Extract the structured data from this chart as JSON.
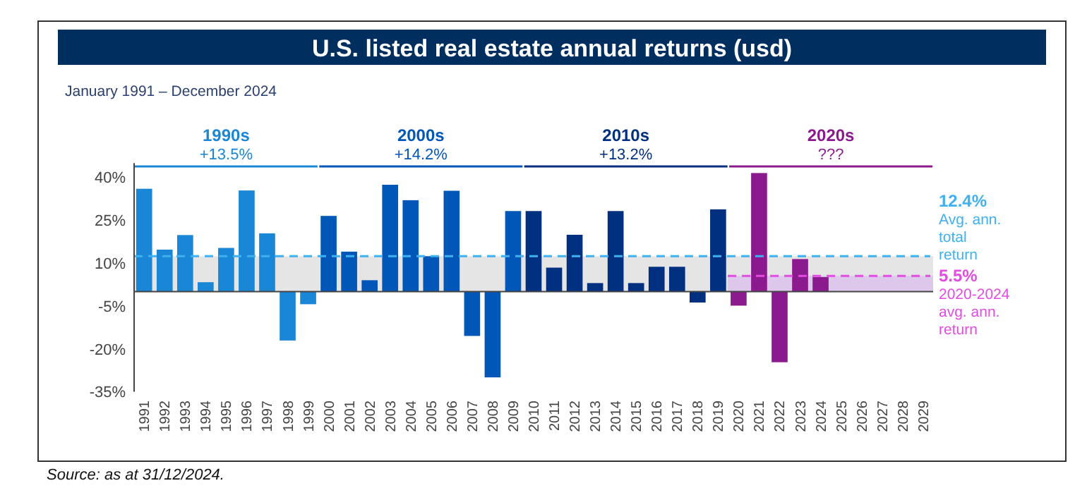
{
  "chart_data": {
    "type": "bar",
    "title": "U.S. listed real estate annual returns (usd)",
    "subtitle": "January 1991 – December 2024",
    "categories": [
      "1991",
      "1992",
      "1993",
      "1994",
      "1995",
      "1996",
      "1997",
      "1998",
      "1999",
      "2000",
      "2001",
      "2002",
      "2003",
      "2004",
      "2005",
      "2006",
      "2007",
      "2008",
      "2009",
      "2010",
      "2011",
      "2012",
      "2013",
      "2014",
      "2015",
      "2016",
      "2017",
      "2018",
      "2019",
      "2020",
      "2021",
      "2022",
      "2023",
      "2024",
      "2025",
      "2026",
      "2027",
      "2028",
      "2029"
    ],
    "values": [
      36,
      14.7,
      19.8,
      3.3,
      15.3,
      35.4,
      20.4,
      -17.1,
      -4.4,
      26.5,
      14,
      4,
      37.4,
      32,
      12.4,
      35.3,
      -15.5,
      -30,
      28.2,
      28.2,
      8.4,
      19.9,
      3,
      28.2,
      3,
      8.7,
      8.7,
      -3.8,
      28.8,
      -4.9,
      41.5,
      -24.7,
      11.4,
      5.1,
      null,
      null,
      null,
      null,
      null
    ],
    "colors": [
      "#1a86d6",
      "#1a86d6",
      "#1a86d6",
      "#1a86d6",
      "#1a86d6",
      "#1a86d6",
      "#1a86d6",
      "#1a86d6",
      "#1a86d6",
      "#0057b8",
      "#0057b8",
      "#0057b8",
      "#0057b8",
      "#0057b8",
      "#0057b8",
      "#0057b8",
      "#0057b8",
      "#0057b8",
      "#0057b8",
      "#00307f",
      "#00307f",
      "#00307f",
      "#00307f",
      "#00307f",
      "#00307f",
      "#00307f",
      "#00307f",
      "#00307f",
      "#00307f",
      "#8b1a8f",
      "#8b1a8f",
      "#8b1a8f",
      "#8b1a8f",
      "#8b1a8f",
      "#8b1a8f",
      "#8b1a8f",
      "#8b1a8f",
      "#8b1a8f",
      "#8b1a8f"
    ],
    "ylim": [
      -35,
      45
    ],
    "yticks": [
      {
        "value": 40,
        "label": "40%"
      },
      {
        "value": 25,
        "label": "25%"
      },
      {
        "value": 10,
        "label": "10%"
      },
      {
        "value": -5,
        "label": "-5%"
      },
      {
        "value": -20,
        "label": "-20%"
      },
      {
        "value": -35,
        "label": "-35%"
      }
    ],
    "bands": [
      {
        "axis": "y",
        "from": 0,
        "to": 12.4,
        "color": "#e2e2e2"
      },
      {
        "axis": "y",
        "from": 0,
        "to": 5.5,
        "color": "#dcc3ea"
      }
    ],
    "ref_lines": [
      {
        "axis": "y",
        "value": 12.4,
        "label": "12.4%\nAvg. ann.\ntotal\nreturn",
        "color": "#3fb0f0",
        "line_style": "dashed"
      },
      {
        "axis": "y",
        "value": 5.5,
        "label": "5.5%\n2020-2024\navg. ann.\nreturn",
        "color": "#e34ce0",
        "line_style": "dashed"
      }
    ],
    "annotations": [
      "1990s",
      "+13.5%",
      "2000s",
      "+14.2%",
      "2010s",
      "+13.2%",
      "2020s",
      "???",
      "Source: as at 31/12/2024."
    ]
  }
}
